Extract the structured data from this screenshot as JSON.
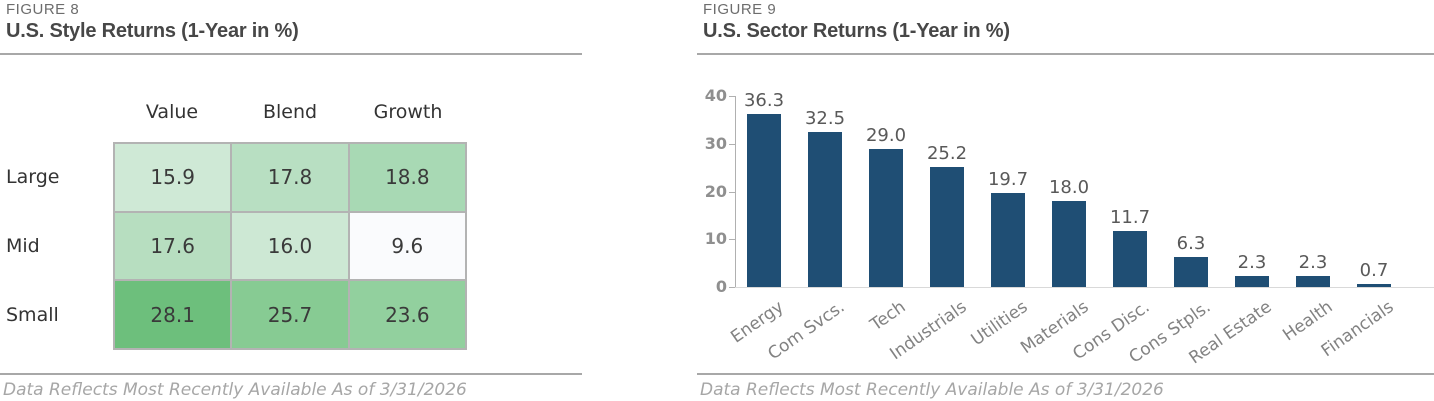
{
  "figure8": {
    "label": "FIGURE 8",
    "title": "U.S. Style Returns (1-Year in %)",
    "footnote": "Data Reflects Most Recently Available As of 3/31/2026"
  },
  "figure9": {
    "label": "FIGURE 9",
    "title": "U.S. Sector Returns (1-Year in %)",
    "footnote": "Data Reflects Most Recently Available As of 3/31/2026"
  },
  "chart_data": [
    {
      "type": "heatmap",
      "title": "U.S. Style Returns (1-Year in %)",
      "rows": [
        "Large",
        "Mid",
        "Small"
      ],
      "columns": [
        "Value",
        "Blend",
        "Growth"
      ],
      "values": [
        [
          15.9,
          17.8,
          18.8
        ],
        [
          17.6,
          16.0,
          9.6
        ],
        [
          28.1,
          25.7,
          23.6
        ]
      ],
      "cell_colors": [
        [
          "#cfe9d6",
          "#b8dfc2",
          "#a8d9b4"
        ],
        [
          "#b7dec0",
          "#cde8d4",
          "#fafbfd"
        ],
        [
          "#6dbf7c",
          "#87cb93",
          "#92d09e"
        ]
      ]
    },
    {
      "type": "bar",
      "title": "U.S. Sector Returns (1-Year in %)",
      "categories": [
        "Energy",
        "Com Svcs.",
        "Tech",
        "Industrials",
        "Utilities",
        "Materials",
        "Cons Disc.",
        "Cons Stpls.",
        "Real Estate",
        "Health",
        "Financials"
      ],
      "values": [
        36.3,
        32.5,
        29.0,
        25.2,
        19.7,
        18.0,
        11.7,
        6.3,
        2.3,
        2.3,
        0.7
      ],
      "xlabel": "",
      "ylabel": "",
      "ylim": [
        0,
        40
      ],
      "yticks": [
        0,
        10,
        20,
        30,
        40
      ],
      "grid": false,
      "legend": false,
      "data_labels": true,
      "bar_color": "#1f4e74"
    }
  ],
  "colors": {
    "bar": "#1f4e74",
    "figure_label": "#6d6d6d",
    "title_text": "#474747",
    "rule": "#a8a8a8",
    "grid_border": "#b3b3b3",
    "cell_text": "#3a3a3a",
    "axis_line": "#b0b0b0",
    "baseline": "#d9d9d9",
    "tick_label": "#8f8f8f",
    "value_label": "#595959",
    "category_label": "#828282",
    "footnote_text": "#a6a6a6"
  }
}
